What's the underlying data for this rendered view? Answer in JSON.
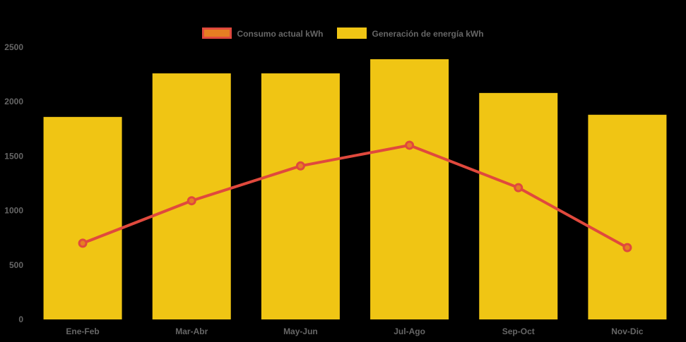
{
  "page": {
    "background_color": "#000000",
    "text_color": "#666666"
  },
  "legend": {
    "position": "top-center",
    "items": [
      {
        "series": "consumo",
        "swatch_fill": "#e67e22",
        "swatch_border": "#e0493d"
      },
      {
        "series": "generacion",
        "swatch_fill": "#f0c514",
        "swatch_border": "#f0c514"
      }
    ]
  },
  "chart_data": {
    "type": "bar+line",
    "categories": [
      "Ene-Feb",
      "Mar-Abr",
      "May-Jun",
      "Jul-Ago",
      "Sep-Oct",
      "Nov-Dic"
    ],
    "series": [
      {
        "name": "Consumo actual kWh",
        "type": "line",
        "line_color": "#e0493d",
        "marker_color": "#e67e22",
        "values": [
          700,
          1090,
          1410,
          1600,
          1210,
          660
        ]
      },
      {
        "name": "Generación de energía kWh",
        "type": "bar",
        "color": "#f0c514",
        "values": [
          1860,
          2260,
          2260,
          2390,
          2080,
          1880
        ]
      }
    ],
    "ylabel": "",
    "xlabel": "",
    "ylim": [
      0,
      2500
    ],
    "yticks": [
      0,
      500,
      1000,
      1500,
      2000,
      2500
    ],
    "grid": false,
    "legend_position": "top-center",
    "axis_text_color": "#666666",
    "background": "#000000"
  }
}
